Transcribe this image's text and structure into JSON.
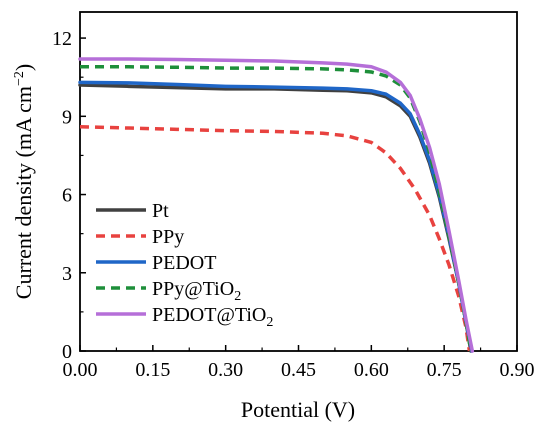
{
  "chart_data": {
    "type": "line",
    "xlabel": "Potential (V)",
    "ylabel": {
      "prefix": "Current density (mA cm",
      "superscript": "−2",
      "suffix": ")"
    },
    "xlim": [
      0,
      0.9
    ],
    "ylim": [
      0,
      13
    ],
    "x_ticks": [
      0.0,
      0.15,
      0.3,
      0.45,
      0.6,
      0.75,
      0.9
    ],
    "x_tick_labels": [
      "0.00",
      "0.15",
      "0.30",
      "0.45",
      "0.60",
      "0.75",
      "0.90"
    ],
    "y_ticks": [
      0,
      3,
      6,
      9,
      12
    ],
    "y_tick_labels": [
      "0",
      "3",
      "6",
      "9",
      "12"
    ],
    "grid": false,
    "legend_placement": "bottom-left",
    "series": [
      {
        "name": "Pt",
        "legend_parts": [
          {
            "text": "Pt",
            "sub": ""
          }
        ],
        "color": "#404040",
        "style": "solid",
        "points": [
          [
            0.0,
            10.2
          ],
          [
            0.1,
            10.15
          ],
          [
            0.2,
            10.1
          ],
          [
            0.3,
            10.05
          ],
          [
            0.4,
            10.05
          ],
          [
            0.5,
            10.0
          ],
          [
            0.55,
            9.98
          ],
          [
            0.6,
            9.9
          ],
          [
            0.63,
            9.75
          ],
          [
            0.66,
            9.4
          ],
          [
            0.68,
            9.0
          ],
          [
            0.7,
            8.2
          ],
          [
            0.72,
            7.2
          ],
          [
            0.74,
            5.9
          ],
          [
            0.76,
            4.3
          ],
          [
            0.78,
            2.6
          ],
          [
            0.795,
            1.1
          ],
          [
            0.805,
            0.0
          ]
        ]
      },
      {
        "name": "PPy",
        "legend_parts": [
          {
            "text": "PPy",
            "sub": ""
          }
        ],
        "color": "#e8423f",
        "style": "dashed",
        "points": [
          [
            0.0,
            8.6
          ],
          [
            0.1,
            8.55
          ],
          [
            0.2,
            8.5
          ],
          [
            0.3,
            8.45
          ],
          [
            0.4,
            8.42
          ],
          [
            0.5,
            8.35
          ],
          [
            0.55,
            8.25
          ],
          [
            0.6,
            8.0
          ],
          [
            0.63,
            7.6
          ],
          [
            0.66,
            7.0
          ],
          [
            0.69,
            6.2
          ],
          [
            0.72,
            5.2
          ],
          [
            0.74,
            4.3
          ],
          [
            0.76,
            3.3
          ],
          [
            0.78,
            2.1
          ],
          [
            0.795,
            0.9
          ],
          [
            0.802,
            0.0
          ]
        ]
      },
      {
        "name": "PEDOT",
        "legend_parts": [
          {
            "text": "PEDOT",
            "sub": ""
          }
        ],
        "color": "#1f66c7",
        "style": "solid",
        "points": [
          [
            0.0,
            10.3
          ],
          [
            0.1,
            10.28
          ],
          [
            0.2,
            10.22
          ],
          [
            0.3,
            10.15
          ],
          [
            0.4,
            10.12
          ],
          [
            0.5,
            10.08
          ],
          [
            0.55,
            10.05
          ],
          [
            0.6,
            9.98
          ],
          [
            0.63,
            9.85
          ],
          [
            0.66,
            9.5
          ],
          [
            0.68,
            9.1
          ],
          [
            0.7,
            8.3
          ],
          [
            0.72,
            7.3
          ],
          [
            0.74,
            6.0
          ],
          [
            0.76,
            4.4
          ],
          [
            0.78,
            2.6
          ],
          [
            0.795,
            1.1
          ],
          [
            0.807,
            0.0
          ]
        ]
      },
      {
        "name": "PPy@TiO2",
        "legend_parts": [
          {
            "text": "PPy@TiO",
            "sub": "2"
          }
        ],
        "color": "#1e8f3a",
        "style": "dashed",
        "points": [
          [
            0.0,
            10.9
          ],
          [
            0.1,
            10.9
          ],
          [
            0.2,
            10.88
          ],
          [
            0.3,
            10.85
          ],
          [
            0.4,
            10.85
          ],
          [
            0.5,
            10.82
          ],
          [
            0.55,
            10.78
          ],
          [
            0.6,
            10.7
          ],
          [
            0.63,
            10.55
          ],
          [
            0.66,
            10.2
          ],
          [
            0.68,
            9.7
          ],
          [
            0.7,
            8.8
          ],
          [
            0.72,
            7.6
          ],
          [
            0.74,
            6.1
          ],
          [
            0.76,
            4.4
          ],
          [
            0.78,
            2.6
          ],
          [
            0.795,
            1.1
          ],
          [
            0.805,
            0.0
          ]
        ]
      },
      {
        "name": "PEDOT@TiO2",
        "legend_parts": [
          {
            "text": "PEDOT@TiO",
            "sub": "2"
          }
        ],
        "color": "#b56fd8",
        "style": "solid",
        "points": [
          [
            0.0,
            11.2
          ],
          [
            0.1,
            11.2
          ],
          [
            0.2,
            11.18
          ],
          [
            0.3,
            11.15
          ],
          [
            0.4,
            11.12
          ],
          [
            0.5,
            11.05
          ],
          [
            0.55,
            11.0
          ],
          [
            0.6,
            10.9
          ],
          [
            0.63,
            10.7
          ],
          [
            0.66,
            10.3
          ],
          [
            0.68,
            9.8
          ],
          [
            0.7,
            8.9
          ],
          [
            0.72,
            7.8
          ],
          [
            0.74,
            6.4
          ],
          [
            0.76,
            4.6
          ],
          [
            0.78,
            2.7
          ],
          [
            0.795,
            1.2
          ],
          [
            0.808,
            0.0
          ]
        ]
      }
    ]
  }
}
